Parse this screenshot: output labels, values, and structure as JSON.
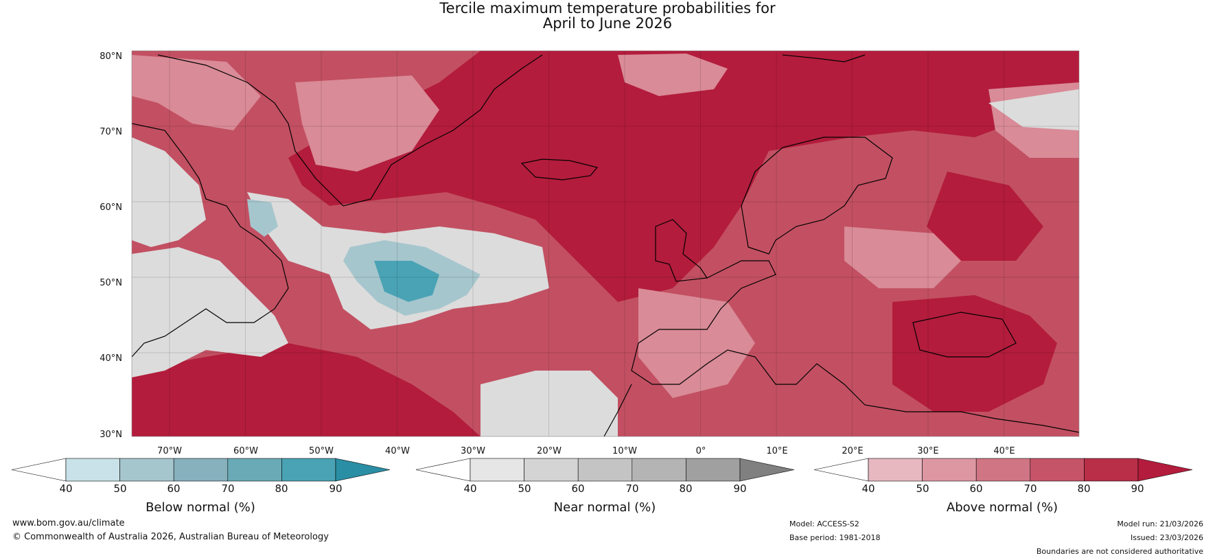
{
  "title": {
    "line1": "Tercile maximum temperature probabilities for",
    "line2": "April to June 2026"
  },
  "map": {
    "lat_labels": [
      "80°N",
      "70°N",
      "60°N",
      "50°N",
      "40°N",
      "30°N"
    ],
    "lon_labels": [
      "70°W",
      "60°W",
      "50°W",
      "40°W",
      "30°W",
      "20°W",
      "10°W",
      "0°",
      "10°E",
      "20°E",
      "30°E",
      "40°E"
    ],
    "colors": {
      "above_base": "#c25062",
      "ocean_dark": "#b31c3c",
      "sea_land_light": "#d98b97",
      "near_grey": "#dcdcdc",
      "below_blue": "#4aa3b5"
    }
  },
  "colorbars": [
    {
      "name": "below",
      "title": "Below normal (%)",
      "ticks": [
        "40",
        "50",
        "60",
        "70",
        "80",
        "90"
      ],
      "colors": [
        "#ffffff",
        "#c9e1e8",
        "#a6c6cd",
        "#86b1bd",
        "#6aaab7",
        "#4aa3b5",
        "#2a8ea4"
      ]
    },
    {
      "name": "near",
      "title": "Near normal (%)",
      "ticks": [
        "40",
        "50",
        "60",
        "70",
        "80",
        "90"
      ],
      "colors": [
        "#ffffff",
        "#e6e6e6",
        "#d4d4d4",
        "#c4c4c4",
        "#b4b4b4",
        "#a0a0a0",
        "#808080"
      ]
    },
    {
      "name": "above",
      "title": "Above normal (%)",
      "ticks": [
        "40",
        "50",
        "60",
        "70",
        "80",
        "90"
      ],
      "colors": [
        "#ffffff",
        "#e8b8c1",
        "#dd97a2",
        "#d07584",
        "#c65468",
        "#b92f48",
        "#b31c3c"
      ]
    }
  ],
  "footer": {
    "url": "www.bom.gov.au/climate",
    "copyright": "© Commonwealth of Australia 2026, Australian Bureau of Meteorology",
    "model": "Model: ACCESS-S2",
    "base_period": "Base period: 1981-2018",
    "model_run": "Model run: 21/03/2026",
    "issued": "Issued: 23/03/2026",
    "disclaimer": "Boundaries are not considered authoritative"
  }
}
